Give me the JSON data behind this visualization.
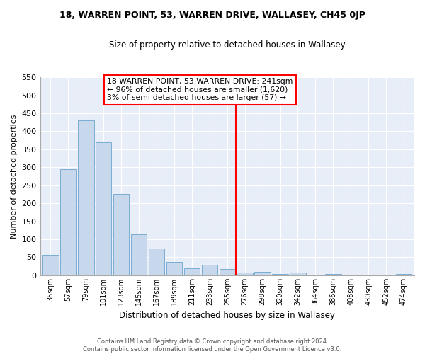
{
  "title": "18, WARREN POINT, 53, WARREN DRIVE, WALLASEY, CH45 0JP",
  "subtitle": "Size of property relative to detached houses in Wallasey",
  "xlabel": "Distribution of detached houses by size in Wallasey",
  "ylabel": "Number of detached properties",
  "bar_color": "#c8d8ec",
  "bar_edge_color": "#7aadd4",
  "background_color": "#e8eef8",
  "grid_color": "#ffffff",
  "categories": [
    "35sqm",
    "57sqm",
    "79sqm",
    "101sqm",
    "123sqm",
    "145sqm",
    "167sqm",
    "189sqm",
    "211sqm",
    "233sqm",
    "255sqm",
    "276sqm",
    "298sqm",
    "320sqm",
    "342sqm",
    "364sqm",
    "386sqm",
    "408sqm",
    "430sqm",
    "452sqm",
    "474sqm"
  ],
  "values": [
    57,
    295,
    430,
    370,
    225,
    113,
    75,
    37,
    20,
    30,
    17,
    8,
    9,
    3,
    8,
    0,
    3,
    0,
    0,
    0,
    3
  ],
  "ylim": [
    0,
    550
  ],
  "yticks": [
    0,
    50,
    100,
    150,
    200,
    250,
    300,
    350,
    400,
    450,
    500,
    550
  ],
  "vline_x": 10.5,
  "annotation_title": "18 WARREN POINT, 53 WARREN DRIVE: 241sqm",
  "annotation_line1": "← 96% of detached houses are smaller (1,620)",
  "annotation_line2": "3% of semi-detached houses are larger (57) →",
  "footer_line1": "Contains HM Land Registry data © Crown copyright and database right 2024.",
  "footer_line2": "Contains public sector information licensed under the Open Government Licence v3.0."
}
